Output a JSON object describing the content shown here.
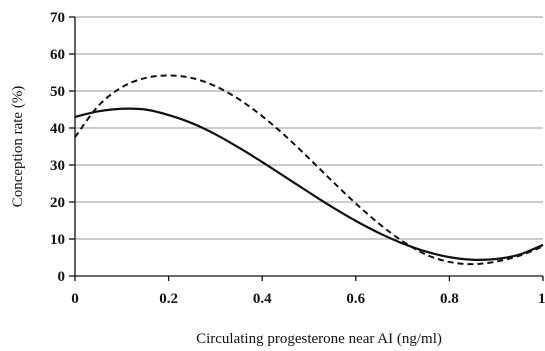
{
  "chart_data": {
    "type": "line",
    "title": "",
    "xlabel": "Circulating progesterone near AI (ng/ml)",
    "ylabel": "Conception rate (%)",
    "xlim": [
      0,
      1
    ],
    "ylim": [
      0,
      70
    ],
    "x_ticks": [
      0,
      0.2,
      0.4,
      0.6,
      0.8,
      1
    ],
    "x_tick_labels": [
      "0",
      "0.2",
      "0.4",
      "0.6",
      "0.8",
      "1"
    ],
    "y_ticks": [
      0,
      10,
      20,
      30,
      40,
      50,
      60,
      70
    ],
    "y_tick_labels": [
      "0",
      "10",
      "20",
      "30",
      "40",
      "50",
      "60",
      "70"
    ],
    "grid": "horizontal",
    "legend": "none",
    "series": [
      {
        "style": "solid",
        "color": "#111111",
        "x": [
          0,
          0.05,
          0.1,
          0.15,
          0.2,
          0.25,
          0.3,
          0.35,
          0.4,
          0.45,
          0.5,
          0.55,
          0.6,
          0.65,
          0.7,
          0.75,
          0.8,
          0.85,
          0.9,
          0.95,
          1.0
        ],
        "values": [
          43,
          44.5,
          45.2,
          45,
          43.5,
          41.3,
          38.3,
          34.7,
          30.8,
          26.7,
          22.6,
          18.6,
          14.9,
          11.6,
          8.8,
          6.6,
          5.1,
          4.4,
          4.6,
          5.8,
          8.4
        ]
      },
      {
        "style": "dashed",
        "color": "#111111",
        "x": [
          0,
          0.05,
          0.1,
          0.15,
          0.2,
          0.25,
          0.3,
          0.35,
          0.4,
          0.45,
          0.5,
          0.55,
          0.6,
          0.65,
          0.7,
          0.75,
          0.8,
          0.85,
          0.9,
          0.95,
          1.0
        ],
        "values": [
          37.5,
          46,
          51,
          53.5,
          54.2,
          53.5,
          51.3,
          47.8,
          43.2,
          37.8,
          31.8,
          25.6,
          19.6,
          14.1,
          9.4,
          5.8,
          3.8,
          3.2,
          3.9,
          5.5,
          8
        ]
      }
    ]
  }
}
